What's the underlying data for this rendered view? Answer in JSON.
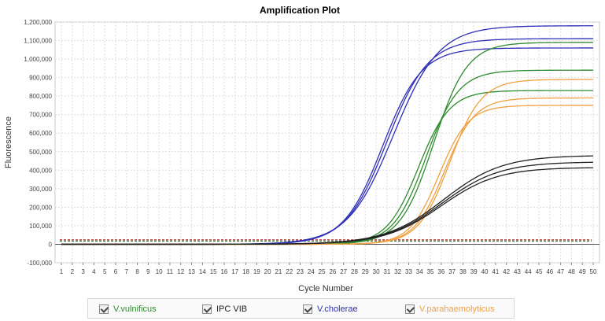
{
  "chart_data": {
    "type": "line",
    "title": "Amplification Plot",
    "xlabel": "Cycle Number",
    "ylabel": "Fluorescence",
    "xlim": [
      1,
      50
    ],
    "ylim": [
      -100000,
      1200000
    ],
    "y_ticks": [
      -100000,
      0,
      100000,
      200000,
      300000,
      400000,
      500000,
      600000,
      700000,
      800000,
      900000,
      1000000,
      1100000,
      1200000
    ],
    "y_tick_labels": [
      "-100,000",
      "0",
      "100,000",
      "200,000",
      "300,000",
      "400,000",
      "500,000",
      "600,000",
      "700,000",
      "800,000",
      "900,000",
      "1,000,000",
      "1,100,000",
      "1,200,000"
    ],
    "threshold": 17000,
    "grid": true,
    "colors": {
      "V.vulnificus": "#2e8b2e",
      "IPC VIB": "#222222",
      "V.cholerae": "#2f2fb8",
      "V.parahaemolyticus": "#f0a040",
      "threshold_a": "#b22222",
      "threshold_b": "#2e7d32"
    },
    "series": [
      {
        "name": "V.cholerae",
        "plateau": 1180000,
        "midpoint": 31.6,
        "slope": 2.1
      },
      {
        "name": "V.cholerae",
        "plateau": 1110000,
        "midpoint": 31.0,
        "slope": 1.9
      },
      {
        "name": "V.cholerae",
        "plateau": 1060000,
        "midpoint": 30.6,
        "slope": 1.8
      },
      {
        "name": "V.vulnificus",
        "plateau": 1090000,
        "midpoint": 35.3,
        "slope": 1.55
      },
      {
        "name": "V.vulnificus",
        "plateau": 940000,
        "midpoint": 34.6,
        "slope": 1.5
      },
      {
        "name": "V.vulnificus",
        "plateau": 830000,
        "midpoint": 33.9,
        "slope": 1.45
      },
      {
        "name": "V.parahaemolyticus",
        "plateau": 890000,
        "midpoint": 36.8,
        "slope": 1.45
      },
      {
        "name": "V.parahaemolyticus",
        "plateau": 790000,
        "midpoint": 36.3,
        "slope": 1.4
      },
      {
        "name": "V.parahaemolyticus",
        "plateau": 750000,
        "midpoint": 35.8,
        "slope": 1.35
      },
      {
        "name": "IPC VIB",
        "plateau": 480000,
        "midpoint": 36.2,
        "slope": 2.7
      },
      {
        "name": "IPC VIB",
        "plateau": 445000,
        "midpoint": 36.1,
        "slope": 2.65
      },
      {
        "name": "IPC VIB",
        "plateau": 415000,
        "midpoint": 36.0,
        "slope": 2.6
      }
    ]
  },
  "legend": [
    {
      "label": "V.vulnificus",
      "color": "#2e8b2e",
      "checked": true
    },
    {
      "label": "IPC VIB",
      "color": "#222222",
      "checked": true
    },
    {
      "label": "V.cholerae",
      "color": "#2f2fb8",
      "checked": true
    },
    {
      "label": "V.parahaemolyticus",
      "color": "#f0a040",
      "checked": true
    }
  ]
}
